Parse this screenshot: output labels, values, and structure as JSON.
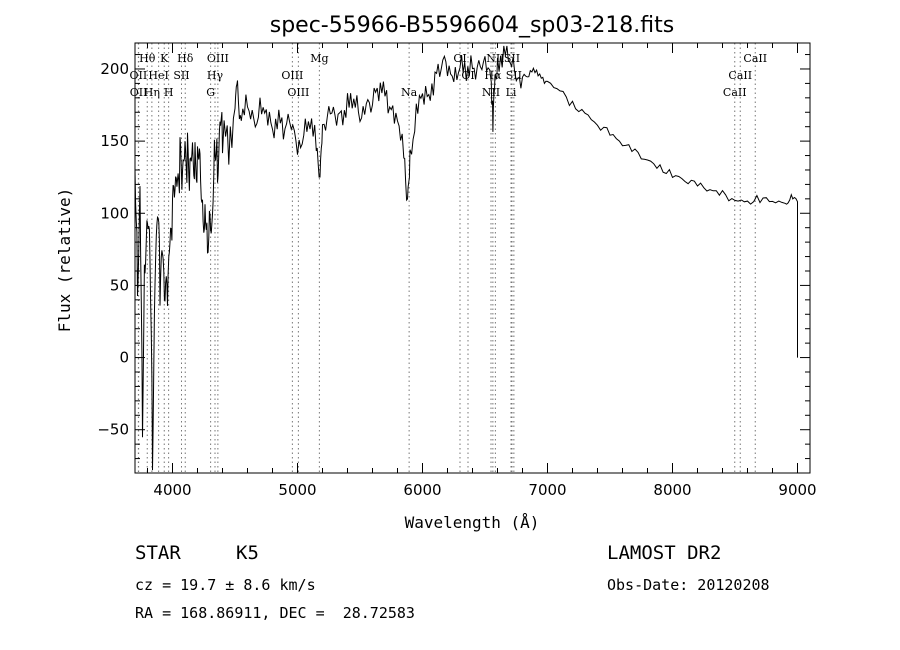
{
  "chart_data": {
    "type": "line",
    "title": "spec-55966-B5596604_sp03-218.fits",
    "xlabel": "Wavelength (Å)",
    "ylabel": "Flux (relative)",
    "xlim": [
      3700,
      9100
    ],
    "ylim": [
      -80,
      218
    ],
    "xticks": [
      4000,
      5000,
      6000,
      7000,
      8000,
      9000
    ],
    "yticks": [
      -50,
      0,
      50,
      100,
      150,
      200
    ],
    "grid": false,
    "series": [
      {
        "x": [
          3700,
          3720,
          3740,
          3760,
          3780,
          3800,
          3820,
          3840,
          3860,
          3880,
          3900,
          3920,
          3940,
          3960,
          3980,
          4000,
          4020,
          4040,
          4060,
          4080,
          4100,
          4120,
          4140,
          4160,
          4180,
          4200,
          4220,
          4240,
          4260,
          4280,
          4300,
          4320,
          4340,
          4360,
          4380,
          4400,
          4450,
          4500,
          4520,
          4550,
          4600,
          4650,
          4700,
          4750,
          4800,
          4850,
          4900,
          4950,
          5000,
          5050,
          5100,
          5150,
          5180,
          5200,
          5250,
          5300,
          5350,
          5400,
          5450,
          5500,
          5550,
          5600,
          5650,
          5700,
          5750,
          5800,
          5850,
          5880,
          5900,
          5950,
          6000,
          6050,
          6100,
          6150,
          6200,
          6250,
          6300,
          6350,
          6400,
          6450,
          6500,
          6550,
          6563,
          6580,
          6600,
          6650,
          6700,
          6750,
          6800,
          6850,
          6900,
          6950,
          7000,
          7100,
          7200,
          7300,
          7400,
          7500,
          7600,
          7700,
          7800,
          7900,
          8000,
          8100,
          8200,
          8300,
          8400,
          8500,
          8600,
          8700,
          8800,
          8900,
          8950,
          9000
        ],
        "y": [
          135,
          60,
          120,
          -50,
          80,
          100,
          70,
          -70,
          60,
          95,
          50,
          80,
          30,
          40,
          85,
          95,
          110,
          125,
          135,
          115,
          150,
          140,
          120,
          150,
          140,
          130,
          145,
          110,
          95,
          80,
          110,
          95,
          150,
          140,
          165,
          150,
          155,
          175,
          190,
          160,
          175,
          165,
          170,
          165,
          160,
          170,
          155,
          165,
          150,
          155,
          160,
          150,
          130,
          160,
          165,
          165,
          170,
          175,
          175,
          170,
          180,
          175,
          185,
          190,
          170,
          160,
          140,
          110,
          140,
          165,
          180,
          185,
          195,
          200,
          205,
          198,
          200,
          195,
          205,
          200,
          200,
          190,
          160,
          195,
          205,
          210,
          205,
          200,
          195,
          195,
          200,
          195,
          190,
          185,
          175,
          170,
          162,
          155,
          148,
          142,
          137,
          132,
          127,
          123,
          119,
          116,
          113,
          110,
          108,
          110,
          108,
          106,
          110,
          108
        ]
      }
    ],
    "line_markers": [
      {
        "label": "Hθ",
        "wl": 3798,
        "row": 1
      },
      {
        "label": "K",
        "wl": 3934,
        "row": 1
      },
      {
        "label": "Hδ",
        "wl": 4102,
        "row": 1
      },
      {
        "label": "OIII",
        "wl": 4363,
        "row": 1
      },
      {
        "label": "Mg",
        "wl": 5175,
        "row": 1
      },
      {
        "label": "OI",
        "wl": 6300,
        "row": 1
      },
      {
        "label": "NII",
        "wl": 6583,
        "row": 1
      },
      {
        "label": "SII",
        "wl": 6716,
        "row": 1
      },
      {
        "label": "CaII",
        "wl": 8662,
        "row": 1
      },
      {
        "label": "OII",
        "wl": 3727,
        "row": 2
      },
      {
        "label": "HeI",
        "wl": 3889,
        "row": 2
      },
      {
        "label": "SII",
        "wl": 4072,
        "row": 2
      },
      {
        "label": "Hγ",
        "wl": 4340,
        "row": 2
      },
      {
        "label": "OIII",
        "wl": 4959,
        "row": 2
      },
      {
        "label": "OI",
        "wl": 6364,
        "row": 2
      },
      {
        "label": "Hα",
        "wl": 6563,
        "row": 2
      },
      {
        "label": "SII",
        "wl": 6731,
        "row": 2
      },
      {
        "label": "CaII",
        "wl": 8542,
        "row": 2
      },
      {
        "label": "OII",
        "wl": 3729,
        "row": 3
      },
      {
        "label": "Hη",
        "wl": 3835,
        "row": 3
      },
      {
        "label": "H",
        "wl": 3969,
        "row": 3
      },
      {
        "label": "G",
        "wl": 4305,
        "row": 3
      },
      {
        "label": "OIII",
        "wl": 5007,
        "row": 3
      },
      {
        "label": "Na",
        "wl": 5893,
        "row": 3
      },
      {
        "label": "NII",
        "wl": 6548,
        "row": 3
      },
      {
        "label": "Li",
        "wl": 6708,
        "row": 3
      },
      {
        "label": "CaII",
        "wl": 8498,
        "row": 3
      }
    ]
  },
  "info": {
    "object_class": "STAR",
    "subclass": "K5",
    "survey": "LAMOST DR2",
    "cz": "cz = 19.7 ± 8.6 km/s",
    "obs_date": "Obs-Date: 20120208",
    "coords": "RA = 168.86911, DEC =  28.72583"
  }
}
